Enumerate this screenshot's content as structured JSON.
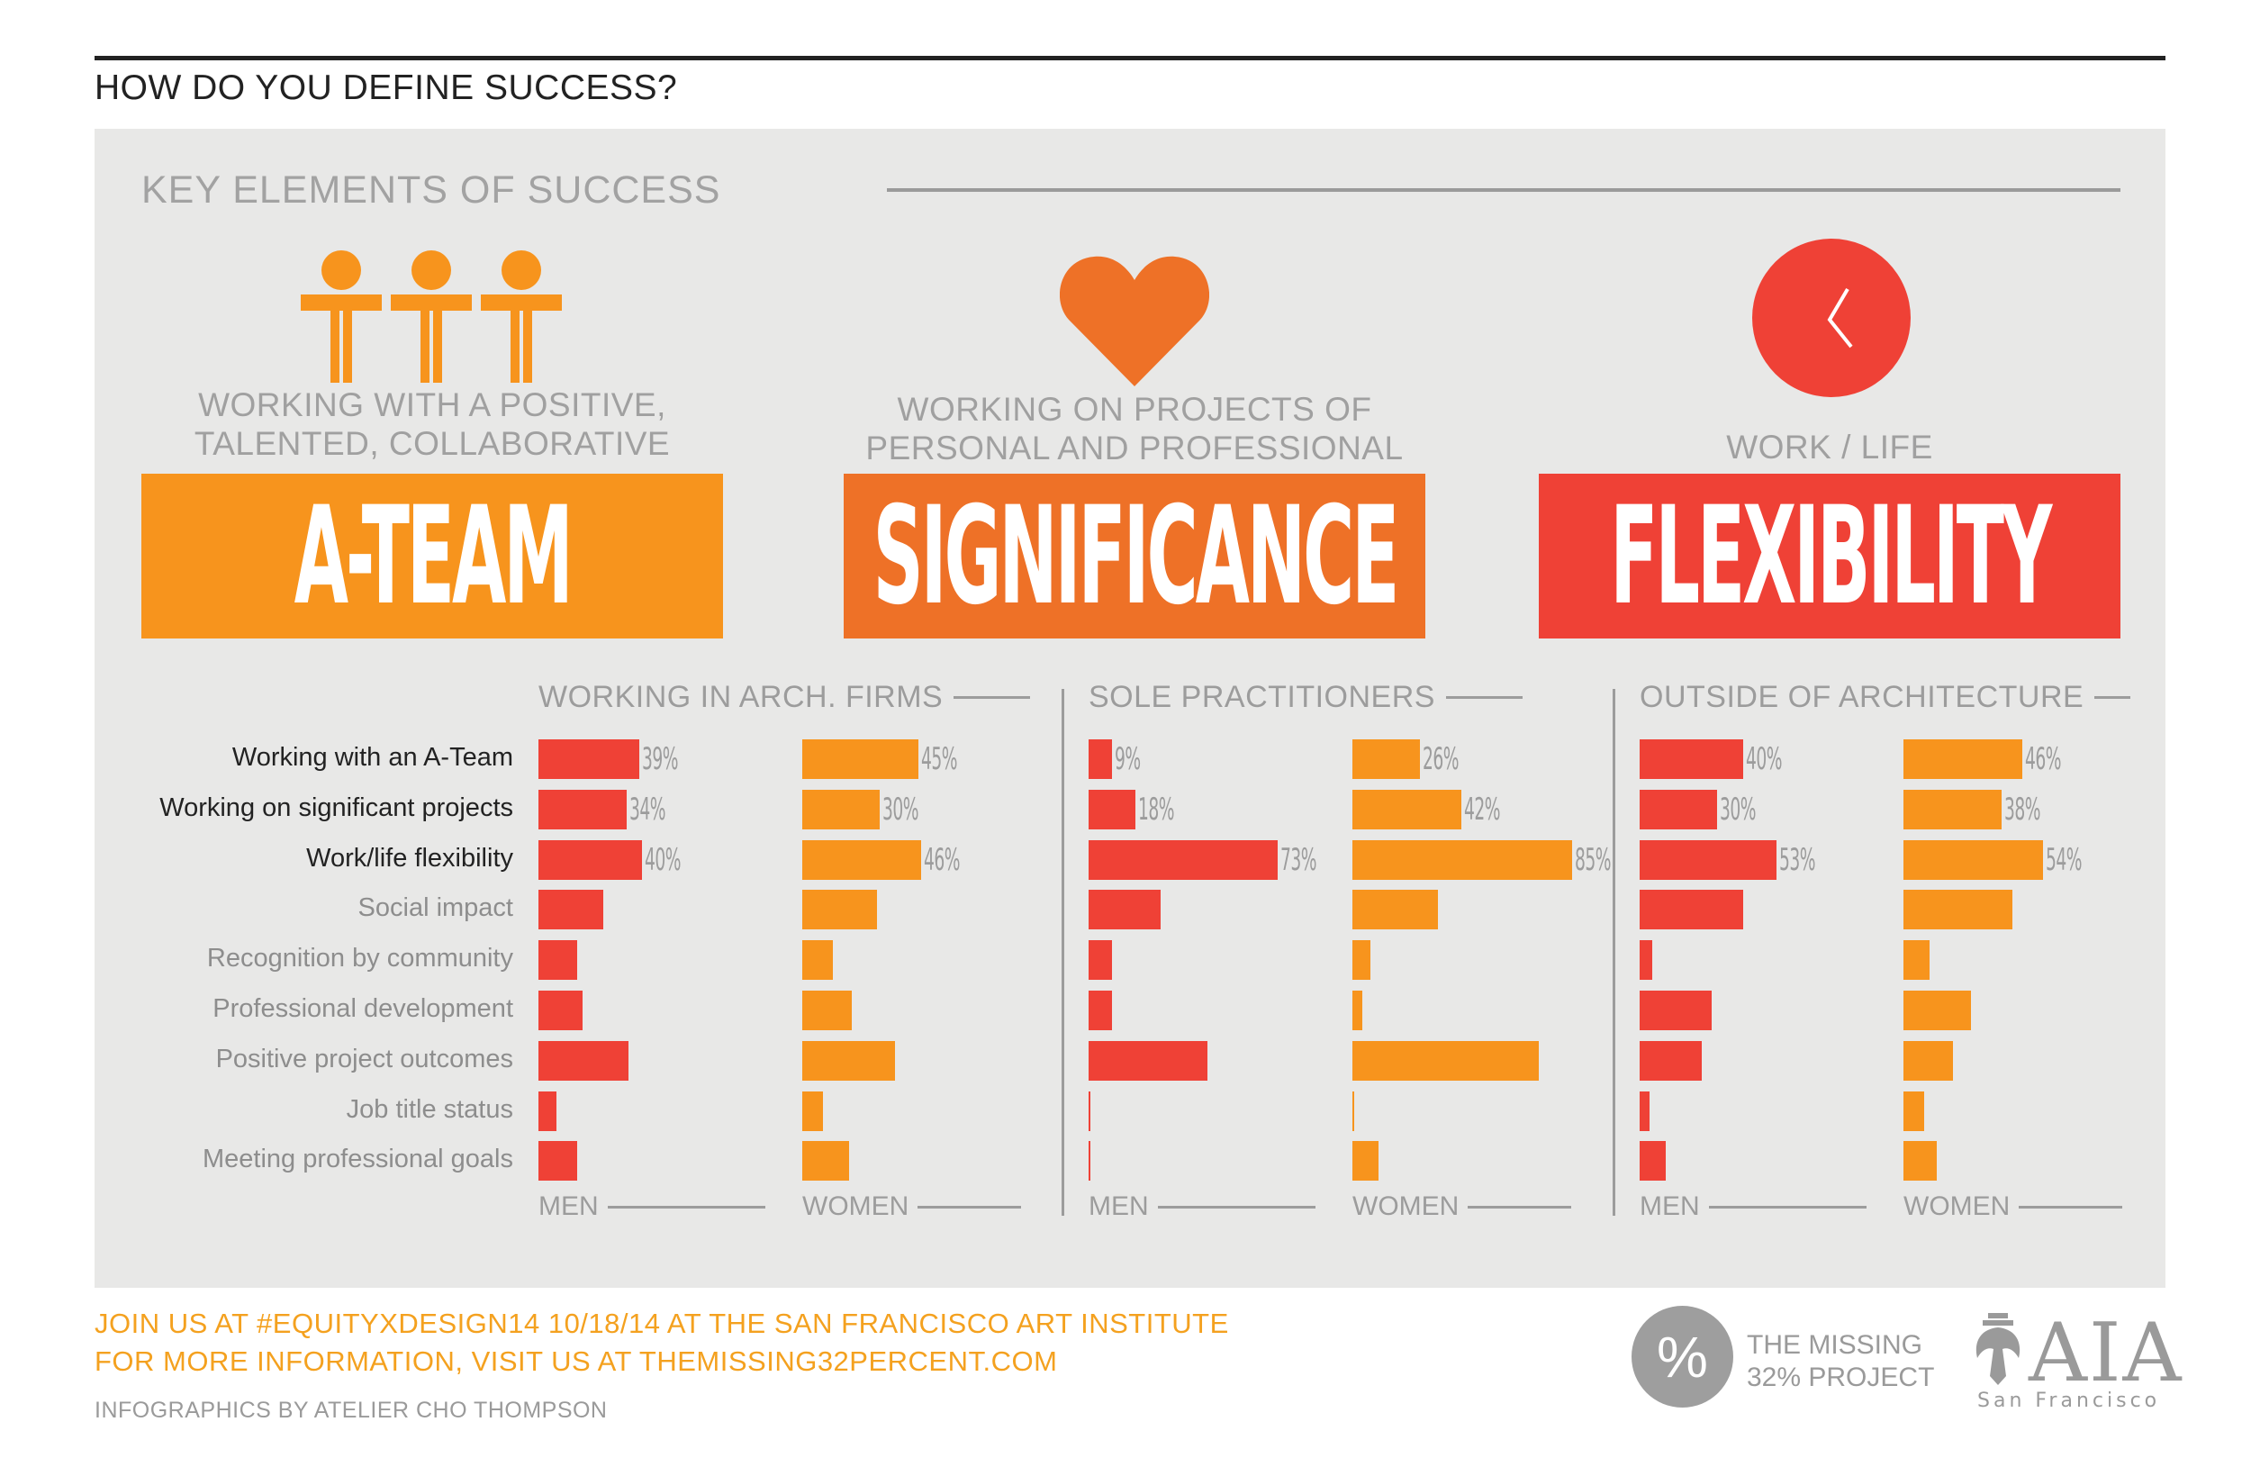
{
  "page_title": "HOW DO YOU DEFINE SUCCESS?",
  "key_title": "KEY ELEMENTS OF SUCCESS",
  "features": [
    {
      "tagline": "WORKING WITH A POSITIVE, TALENTED, COLLABORATIVE",
      "tagline_lines": [
        "WORKING WITH A POSITIVE,",
        "TALENTED, COLLABORATIVE"
      ],
      "banner": "A-TEAM",
      "color": "#f7941d",
      "icon": "people-icon"
    },
    {
      "tagline": "WORKING ON PROJECTS OF PERSONAL AND PROFESSIONAL",
      "tagline_lines": [
        "WORKING ON PROJECTS OF",
        "PERSONAL AND PROFESSIONAL"
      ],
      "banner": "SIGNIFICANCE",
      "color": "#ee7127",
      "icon": "heart-icon"
    },
    {
      "tagline": "WORK / LIFE",
      "tagline_lines": [
        "WORK / LIFE"
      ],
      "banner": "FLEXIBILITY",
      "color": "#ef4136",
      "icon": "clock-icon"
    }
  ],
  "chart_data": {
    "type": "bar",
    "orientation": "horizontal",
    "unit": "%",
    "colors": {
      "men": "#ef4136",
      "women": "#f7941d"
    },
    "categories": [
      "Working with an A-Team",
      "Working on significant projects",
      "Work/life flexibility",
      "Social impact",
      "Recognition by community",
      "Professional development",
      "Positive project outcomes",
      "Job title status",
      "Meeting professional goals"
    ],
    "labeled_rows": 3,
    "groups": [
      {
        "title": "WORKING IN ARCH. FIRMS",
        "series": [
          {
            "name": "MEN",
            "values": [
              39,
              34,
              40,
              25,
              15,
              17,
              35,
              7,
              15
            ]
          },
          {
            "name": "WOMEN",
            "values": [
              45,
              30,
              46,
              29,
              12,
              19,
              36,
              8,
              18
            ]
          }
        ]
      },
      {
        "title": "SOLE PRACTITIONERS",
        "series": [
          {
            "name": "MEN",
            "values": [
              9,
              18,
              73,
              28,
              9,
              9,
              46,
              0.5,
              0.5
            ]
          },
          {
            "name": "WOMEN",
            "values": [
              26,
              42,
              85,
              33,
              7,
              4,
              72,
              0.5,
              10
            ]
          }
        ]
      },
      {
        "title": "OUTSIDE OF ARCHITECTURE",
        "series": [
          {
            "name": "MEN",
            "values": [
              40,
              30,
              53,
              40,
              5,
              28,
              24,
              4,
              10
            ]
          },
          {
            "name": "WOMEN",
            "values": [
              46,
              38,
              54,
              42,
              10,
              26,
              19,
              8,
              13
            ]
          }
        ]
      }
    ]
  },
  "footer": {
    "line1": "JOIN US AT #EQUITYXDESIGN14 10/18/14 AT THE SAN FRANCISCO ART INSTITUTE",
    "line2": "FOR MORE INFORMATION, VISIT US AT THEMISSING32PERCENT.COM",
    "credit": "INFOGRAPHICS BY ATELIER CHO THOMPSON"
  },
  "logos": {
    "missing_symbol": "%",
    "missing_line1": "THE MISSING",
    "missing_line2": "32% PROJECT",
    "aia_word": "AIA",
    "aia_sub": "San Francisco"
  }
}
